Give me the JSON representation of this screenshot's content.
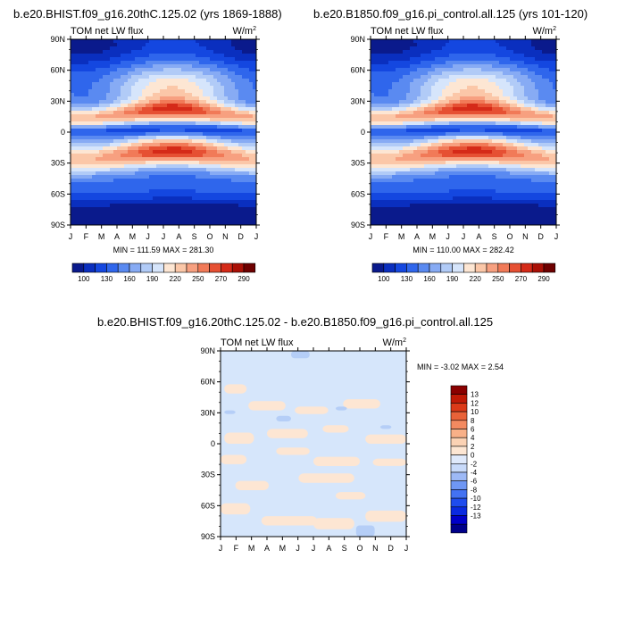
{
  "colors": {
    "palette": [
      "#0a1a8c",
      "#0a2fbf",
      "#1447e0",
      "#2f66ec",
      "#5a8af1",
      "#87abf4",
      "#b1cbf7",
      "#d6e5fb",
      "#fde6d3",
      "#fbc7a8",
      "#f7a080",
      "#f17a58",
      "#e65033",
      "#d52a18",
      "#aa1006",
      "#6e0000"
    ],
    "diff_palette": [
      "#00008a",
      "#0000c8",
      "#0a2ae0",
      "#1f4cee",
      "#4372f2",
      "#6f97f4",
      "#9db9f6",
      "#c8dafa",
      "#dfe9fb",
      "#fde6d3",
      "#fbd2b4",
      "#f8b088",
      "#f38a60",
      "#e96238",
      "#dc3a18",
      "#c01a06",
      "#8a0000"
    ]
  },
  "chart_data": [
    {
      "type": "heatmap",
      "title": "b.e20.BHIST.f09_g16.20thC.125.02 (yrs 1869-1888)",
      "left_label": "TOM net LW flux",
      "right_label": "W/m",
      "units_sup": "2",
      "x_ticks": [
        "J",
        "F",
        "M",
        "A",
        "M",
        "J",
        "J",
        "A",
        "S",
        "O",
        "N",
        "D",
        "J"
      ],
      "y_ticks": [
        "90N",
        "60N",
        "30N",
        "0",
        "30S",
        "60S",
        "90S"
      ],
      "stats": "MIN = 111.59 MAX = 281.30",
      "min": 111.59,
      "max": 281.3,
      "colorbar_labels": [
        "100",
        "130",
        "160",
        "190",
        "220",
        "250",
        "270",
        "290"
      ]
    },
    {
      "type": "heatmap",
      "title": "b.e20.B1850.f09_g16.pi_control.all.125 (yrs 101-120)",
      "left_label": "TOM net LW flux",
      "right_label": "W/m",
      "units_sup": "2",
      "x_ticks": [
        "J",
        "F",
        "M",
        "A",
        "M",
        "J",
        "J",
        "A",
        "S",
        "O",
        "N",
        "D",
        "J"
      ],
      "y_ticks": [
        "90N",
        "60N",
        "30N",
        "0",
        "30S",
        "60S",
        "90S"
      ],
      "stats": "MIN = 110.00 MAX = 282.42",
      "min": 110.0,
      "max": 282.42,
      "colorbar_labels": [
        "100",
        "130",
        "160",
        "190",
        "220",
        "250",
        "270",
        "290"
      ]
    },
    {
      "type": "heatmap",
      "title": "b.e20.BHIST.f09_g16.20thC.125.02 - b.e20.B1850.f09_g16.pi_control.all.125",
      "left_label": "TOM net LW flux",
      "right_label": "W/m",
      "units_sup": "2",
      "x_ticks": [
        "J",
        "F",
        "M",
        "A",
        "M",
        "J",
        "J",
        "A",
        "S",
        "O",
        "N",
        "D",
        "J"
      ],
      "y_ticks": [
        "90N",
        "60N",
        "30N",
        "0",
        "30S",
        "60S",
        "90S"
      ],
      "stats": "MIN =  -3.02 MAX =   2.54",
      "min": -3.02,
      "max": 2.54,
      "colorbar_labels": [
        "13",
        "12",
        "10",
        "8",
        "6",
        "4",
        "2",
        "0",
        "-2",
        "-4",
        "-6",
        "-8",
        "-10",
        "-12",
        "-13"
      ]
    }
  ]
}
